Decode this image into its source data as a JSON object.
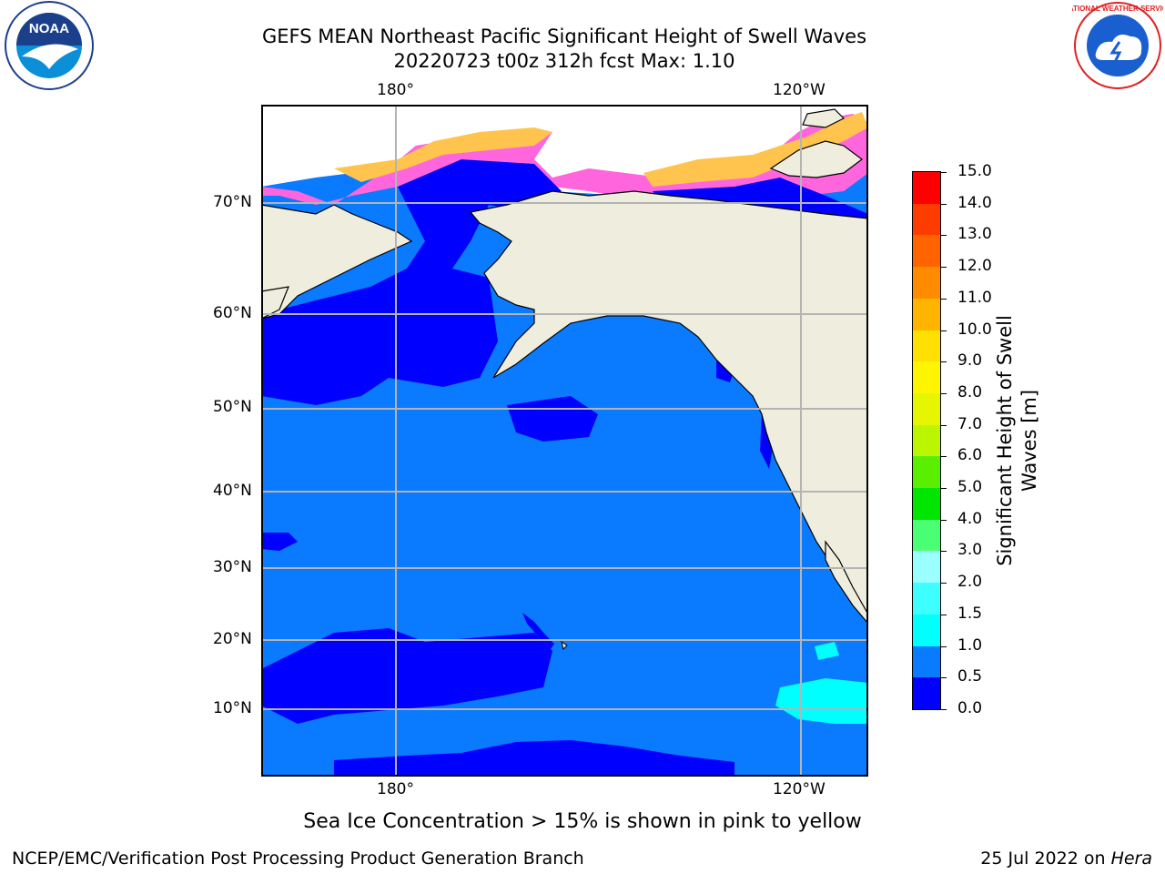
{
  "title": {
    "line1": "GEFS MEAN Northeast Pacific Significant Height of Swell Waves",
    "line2": "20220723 t00z 312h fcst   Max: 1.10"
  },
  "axes": {
    "lon_ticks": [
      "180°",
      "120°W"
    ],
    "lat_ticks": [
      "70°N",
      "60°N",
      "50°N",
      "40°N",
      "30°N",
      "20°N",
      "10°N"
    ]
  },
  "colorbar": {
    "label_line1": "Significant Height of Swell",
    "label_line2": "Waves [m]",
    "ticks": [
      "0.0",
      "0.5",
      "1.0",
      "1.5",
      "2.0",
      "3.0",
      "4.0",
      "5.0",
      "6.0",
      "7.0",
      "8.0",
      "9.0",
      "10.0",
      "11.0",
      "12.0",
      "13.0",
      "14.0",
      "15.0"
    ],
    "colors": [
      "#0000ff",
      "#0a7aff",
      "#00ffff",
      "#3dffff",
      "#9cffff",
      "#4bff75",
      "#00e600",
      "#5aef00",
      "#bbf500",
      "#e6f500",
      "#fff500",
      "#ffe000",
      "#ffb400",
      "#ff8c00",
      "#ff6400",
      "#ff3c00",
      "#ff0000"
    ]
  },
  "note": "Sea Ice Concentration > 15% is shown in pink to yellow",
  "footer": {
    "left": "NCEP/EMC/Verification Post Processing Product Generation Branch",
    "right_date": "25 Jul 2022 on ",
    "right_machine": "Hera"
  },
  "logos": {
    "noaa_text": "NOAA",
    "noaa_ring": "NATIONAL OCEANIC AND ATMOSPHERIC ADMINISTRATION · U.S. DEPARTMENT OF COMMERCE",
    "nws_ring": "NATIONAL WEATHER SERVICE"
  },
  "map_colors": {
    "land": "#efedde",
    "ocean_light": "#0a7aff",
    "ocean_dark": "#0000ff",
    "swell_cyan": "#00ffff",
    "ice_pink": "#ff66dd",
    "ice_yellow": "#ffc44d",
    "grid": "#b4b4b4"
  }
}
